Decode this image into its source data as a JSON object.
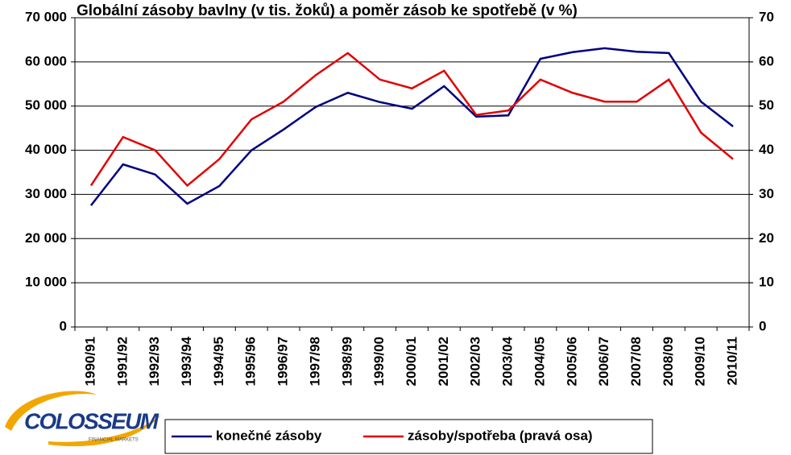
{
  "chart_data": {
    "type": "line",
    "title": "Globální zásoby bavlny (v tis. žoků) a poměr zásob ke spotřebě (v %)",
    "categories": [
      "1990/91",
      "1991/92",
      "1992/93",
      "1993/94",
      "1994/95",
      "1995/96",
      "1996/97",
      "1997/98",
      "1998/99",
      "1999/00",
      "2000/01",
      "2001/02",
      "2002/03",
      "2003/04",
      "2004/05",
      "2005/06",
      "2006/07",
      "2007/08",
      "2008/09",
      "2009/10",
      "2010/11"
    ],
    "series": [
      {
        "name": "konečné zásoby",
        "color": "#000080",
        "values": [
          27500,
          36800,
          34500,
          27900,
          31900,
          40000,
          44700,
          49800,
          53000,
          50900,
          49400,
          54500,
          47600,
          47900,
          60700,
          62200,
          63100,
          62300,
          62000,
          51000,
          45400
        ]
      },
      {
        "name": "zásoby/spotřeba (pravá osa)",
        "color": "#e00000",
        "axis": "y2",
        "values": [
          32,
          43,
          40,
          32,
          38,
          47,
          51,
          57,
          62,
          56,
          54,
          58,
          48,
          49,
          56,
          53,
          51,
          51,
          56,
          44,
          38
        ]
      }
    ],
    "ylim": [
      0,
      70000
    ],
    "yticks": [
      0,
      {
        "value": 10000,
        "label": "10 000"
      },
      {
        "value": 20000,
        "label": "20 000"
      },
      {
        "value": 30000,
        "label": "30 000"
      },
      {
        "value": 40000,
        "label": "40 000"
      },
      {
        "value": 50000,
        "label": "50 000"
      },
      {
        "value": 60000,
        "label": "60 000"
      },
      {
        "value": 70000,
        "label": "70 000"
      }
    ],
    "y2lim": [
      0,
      70
    ],
    "y2ticks": [
      0,
      10,
      20,
      30,
      40,
      50,
      60,
      70
    ],
    "grid": true,
    "legend": "bottom"
  },
  "logo": {
    "name": "COLOSSEUM",
    "tagline": "FINANCIAL MARKETS"
  }
}
